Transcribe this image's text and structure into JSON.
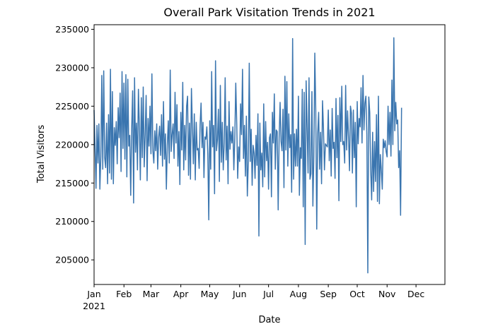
{
  "chart_data": {
    "type": "line",
    "title": "Overall Park Visitation Trends in 2021",
    "xlabel": "Date",
    "ylabel": "Total Visitors",
    "x_start": "2021-01-01",
    "x_end": "2021-12-31",
    "xlim": [
      "2021-01-01",
      "2021-12-31"
    ],
    "ylim": [
      201800,
      235600
    ],
    "yticks": [
      205000,
      210000,
      215000,
      220000,
      225000,
      230000,
      235000
    ],
    "xticks": [
      {
        "date": "2021-01-01",
        "label": "Jan",
        "sublabel": "2021"
      },
      {
        "date": "2021-02-01",
        "label": "Feb"
      },
      {
        "date": "2021-03-01",
        "label": "Mar"
      },
      {
        "date": "2021-04-01",
        "label": "Apr"
      },
      {
        "date": "2021-05-01",
        "label": "May"
      },
      {
        "date": "2021-06-01",
        "label": "Jun"
      },
      {
        "date": "2021-07-01",
        "label": "Jul"
      },
      {
        "date": "2021-08-01",
        "label": "Aug"
      },
      {
        "date": "2021-09-01",
        "label": "Sep"
      },
      {
        "date": "2021-10-01",
        "label": "Oct"
      },
      {
        "date": "2021-11-01",
        "label": "Nov"
      },
      {
        "date": "2021-12-01",
        "label": "Dec"
      }
    ],
    "grid": false,
    "legend": "none",
    "colors": {
      "line": "#3a75af",
      "axes": "#000000"
    },
    "series": [
      {
        "values": [
          224500,
          219800,
          214300,
          222500,
          217600,
          222700,
          214200,
          218400,
          229000,
          216800,
          229600,
          218300,
          217000,
          222800,
          214900,
          223900,
          216300,
          229800,
          215500,
          226900,
          214900,
          222200,
          219900,
          223000,
          217500,
          224800,
          220900,
          226700,
          216500,
          229500,
          219500,
          228000,
          218100,
          229100,
          215800,
          228500,
          219800,
          221200,
          213400,
          222000,
          227000,
          212400,
          228700,
          219000,
          222800,
          216700,
          227200,
          222300,
          215400,
          226100,
          218300,
          227500,
          217100,
          221200,
          226400,
          215300,
          223400,
          219800,
          225000,
          218800,
          229200,
          219200,
          217600,
          221800,
          219200,
          222700,
          216800,
          221000,
          222400,
          218600,
          223900,
          217200,
          225600,
          218100,
          221400,
          214200,
          219900,
          223100,
          217600,
          229700,
          219100,
          221300,
          222700,
          218200,
          226800,
          220200,
          225200,
          217200,
          221700,
          214800,
          224200,
          219300,
          228100,
          216700,
          222500,
          218000,
          225000,
          226300,
          216000,
          222800,
          215500,
          227300,
          222400,
          217500,
          224000,
          215400,
          222900,
          219300,
          219500,
          216900,
          222600,
          225400,
          219600,
          222900,
          215700,
          221000,
          220700,
          222300,
          218700,
          210200,
          223100,
          216800,
          229500,
          219700,
          222500,
          213600,
          230900,
          219200,
          220700,
          224600,
          215200,
          227700,
          217700,
          222900,
          216700,
          220200,
          228700,
          218000,
          222400,
          214900,
          225600,
          219400,
          221700,
          220200,
          222300,
          216700,
          220800,
          228000,
          222800,
          215600,
          219700,
          217800,
          225300,
          221300,
          229800,
          218200,
          222500,
          215900,
          223700,
          213300,
          217700,
          230600,
          217800,
          222000,
          214700,
          219900,
          218900,
          215600,
          221200,
          217300,
          224000,
          208100,
          222800,
          216700,
          218900,
          214500,
          225300,
          215800,
          223000,
          217900,
          220300,
          214200,
          220900,
          221400,
          213200,
          224200,
          220200,
          226600,
          216800,
          221900,
          221700,
          211500,
          220900,
          225500,
          220400,
          219200,
          224600,
          214400,
          228900,
          219300,
          228200,
          217200,
          224000,
          219600,
          221300,
          213800,
          233800,
          215500,
          221400,
          217200,
          222000,
          217200,
          226300,
          213400,
          219600,
          218200,
          227200,
          211900,
          226800,
          207000,
          228300,
          222300,
          216300,
          228700,
          215500,
          216200,
          226900,
          212000,
          218400,
          231900,
          224400,
          209000,
          221400,
          224200,
          216800,
          221600,
          214900,
          225700,
          222000,
          216700,
          220100,
          219900,
          219700,
          224500,
          217900,
          221900,
          215900,
          224700,
          219500,
          220300,
          215600,
          226000,
          218300,
          223800,
          212700,
          226100,
          220400,
          227600,
          220000,
          220400,
          217600,
          227700,
          219300,
          224400,
          221000,
          216600,
          225000,
          224100,
          216300,
          224500,
          218300,
          222900,
          211900,
          225600,
          220100,
          223400,
          222300,
          227400,
          220200,
          229000,
          221900,
          225400,
          226300,
          221300,
          203300,
          226200,
          224200,
          216600,
          212800,
          221600,
          213900,
          220400,
          215200,
          223900,
          212600,
          226300,
          212300,
          218700,
          216700,
          214200,
          220700,
          219600,
          220500,
          219100,
          218400,
          225000,
          220000,
          224200,
          218500,
          228400,
          220000,
          233900,
          221800,
          225500,
          222700,
          223200,
          217000,
          219200,
          210800,
          224800
        ]
      }
    ]
  }
}
